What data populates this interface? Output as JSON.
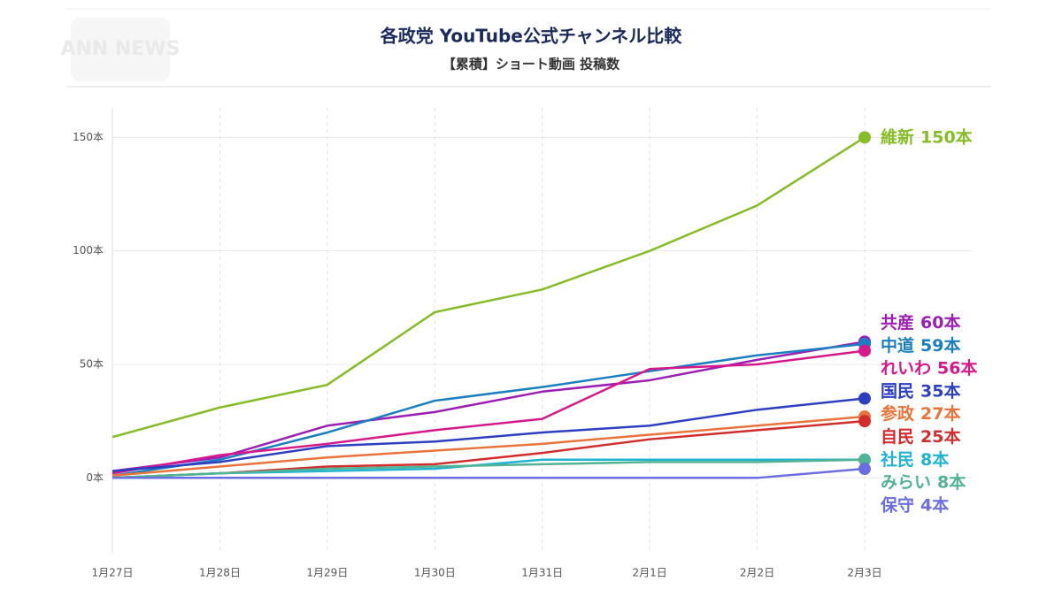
{
  "logo": "ANN NEWS",
  "chart_data": {
    "type": "line",
    "title": "各政党 YouTube公式チャンネル比較",
    "subtitle": "【累積】ショート動画 投稿数",
    "categories": [
      "1月27日",
      "1月28日",
      "1月29日",
      "1月30日",
      "1月31日",
      "2月1日",
      "2月2日",
      "2月3日"
    ],
    "ylim": [
      -33,
      163
    ],
    "yticks": [
      {
        "value": 0,
        "label": "0本"
      },
      {
        "value": 50,
        "label": "50本"
      },
      {
        "value": 100,
        "label": "100本"
      },
      {
        "value": 150,
        "label": "150本"
      }
    ],
    "grid": true,
    "series": [
      {
        "name": "維新",
        "color": "#86bc25",
        "values": [
          18,
          31,
          41,
          73,
          83,
          100,
          120,
          150
        ],
        "value_labels": [
          null,
          null,
          null,
          null,
          null,
          null,
          null,
          "150本"
        ]
      },
      {
        "name": "共産",
        "color": "#9b1fb5",
        "values": [
          3,
          9,
          23,
          29,
          38,
          43,
          52,
          60
        ],
        "value_labels": [
          null,
          null,
          null,
          null,
          null,
          null,
          null,
          "60本"
        ]
      },
      {
        "name": "中道",
        "color": "#1a7fc1",
        "values": [
          1,
          8,
          20,
          34,
          40,
          47,
          54,
          59
        ],
        "value_labels": [
          null,
          null,
          null,
          null,
          null,
          null,
          null,
          "59本"
        ]
      },
      {
        "name": "れいわ",
        "color": "#d6198a",
        "values": [
          2,
          10,
          15,
          21,
          26,
          48,
          50,
          56
        ],
        "value_labels": [
          null,
          null,
          null,
          null,
          null,
          null,
          null,
          "56本"
        ]
      },
      {
        "name": "国民",
        "color": "#2d3fc1",
        "values": [
          3,
          7,
          14,
          16,
          20,
          23,
          30,
          35
        ],
        "value_labels": [
          null,
          null,
          null,
          null,
          null,
          null,
          null,
          "35本"
        ]
      },
      {
        "name": "参政",
        "color": "#e8743b",
        "values": [
          1,
          5,
          9,
          12,
          15,
          19,
          23,
          27
        ],
        "value_labels": [
          null,
          null,
          null,
          null,
          null,
          null,
          null,
          "27本"
        ]
      },
      {
        "name": "自民",
        "color": "#d12d2d",
        "values": [
          0,
          2,
          5,
          6,
          11,
          17,
          21,
          25
        ],
        "value_labels": [
          null,
          null,
          null,
          null,
          null,
          null,
          null,
          "25本"
        ]
      },
      {
        "name": "社民",
        "color": "#1fb3d1",
        "values": [
          0,
          2,
          3,
          4,
          8,
          8,
          8,
          8
        ],
        "value_labels": [
          null,
          null,
          null,
          null,
          null,
          null,
          null,
          "8本"
        ]
      },
      {
        "name": "みらい",
        "color": "#52b394",
        "values": [
          0,
          2,
          4,
          5,
          6,
          7,
          7,
          8
        ],
        "value_labels": [
          null,
          null,
          null,
          null,
          null,
          null,
          null,
          "8本"
        ]
      },
      {
        "name": "保守",
        "color": "#6b6ee0",
        "values": [
          0,
          0,
          0,
          0,
          0,
          0,
          0,
          4
        ],
        "value_labels": [
          null,
          null,
          null,
          null,
          null,
          null,
          null,
          "4本"
        ]
      }
    ]
  }
}
